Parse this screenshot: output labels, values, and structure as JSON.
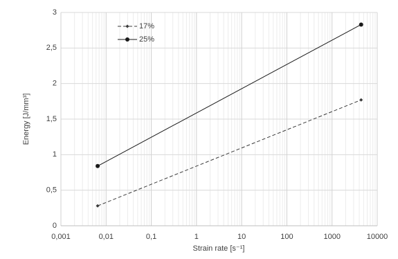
{
  "chart_data": {
    "type": "line",
    "x_label": "Strain rate [s⁻¹]",
    "y_label": "Energy [J/mm³]",
    "x_scale": "log",
    "grid": true,
    "legend": "top-left",
    "xlim": [
      0.001,
      10000
    ],
    "xticks": [
      {
        "value": 0.001,
        "label": "0,001"
      },
      {
        "value": 0.01,
        "label": "0,01"
      },
      {
        "value": 0.1,
        "label": "0,1"
      },
      1,
      10,
      100,
      1000,
      10000
    ],
    "ylim": [
      0,
      3
    ],
    "yticks": [
      0,
      {
        "value": 0.5,
        "label": "0,5"
      },
      1,
      {
        "value": 1.5,
        "label": "1,5"
      },
      2,
      {
        "value": 2.5,
        "label": "2,5"
      },
      3
    ],
    "x": [
      0.0065,
      4400
    ],
    "series": [
      {
        "name": "17%",
        "color": "#3a3a3a",
        "dash": true,
        "marker": "diamond",
        "values": [
          0.28,
          1.77
        ]
      },
      {
        "name": "25%",
        "color": "#1a1a1a",
        "dash": false,
        "marker": "circle",
        "values": [
          0.84,
          2.83
        ]
      }
    ]
  }
}
